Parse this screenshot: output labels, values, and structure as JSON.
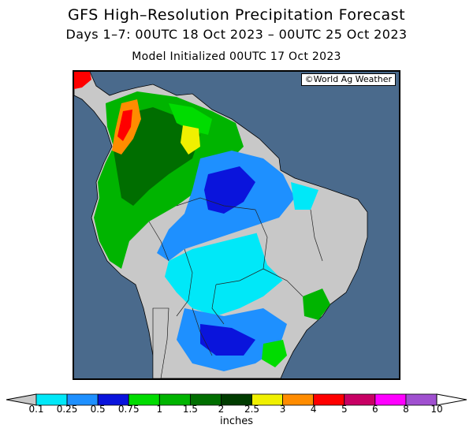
{
  "title": "GFS High–Resolution Precipitation Forecast",
  "subtitle": "Days 1–7: 00UTC 18 Oct 2023 – 00UTC 25 Oct 2023",
  "model_line": "Model Initialized 00UTC 17 Oct 2023",
  "copyright": "©World Ag Weather",
  "legend": {
    "unit": "inches",
    "labels": [
      "0.1",
      "0.25",
      "0.5",
      "0.75",
      "1",
      "1.5",
      "2",
      "2.5",
      "3",
      "4",
      "5",
      "6",
      "8",
      "10"
    ],
    "colors": [
      "#00e8f8",
      "#1e90ff",
      "#0a14dc",
      "#00dc00",
      "#00b400",
      "#006e00",
      "#003c00",
      "#f0f000",
      "#ff8c00",
      "#ff0000",
      "#c80064",
      "#ff00ff",
      "#a050d0"
    ],
    "below_color": "#c8c8c8",
    "above_color": "#ffffff"
  },
  "colors": {
    "ocean": "#4a6a8c",
    "dry_land": "#c8c8c8"
  }
}
